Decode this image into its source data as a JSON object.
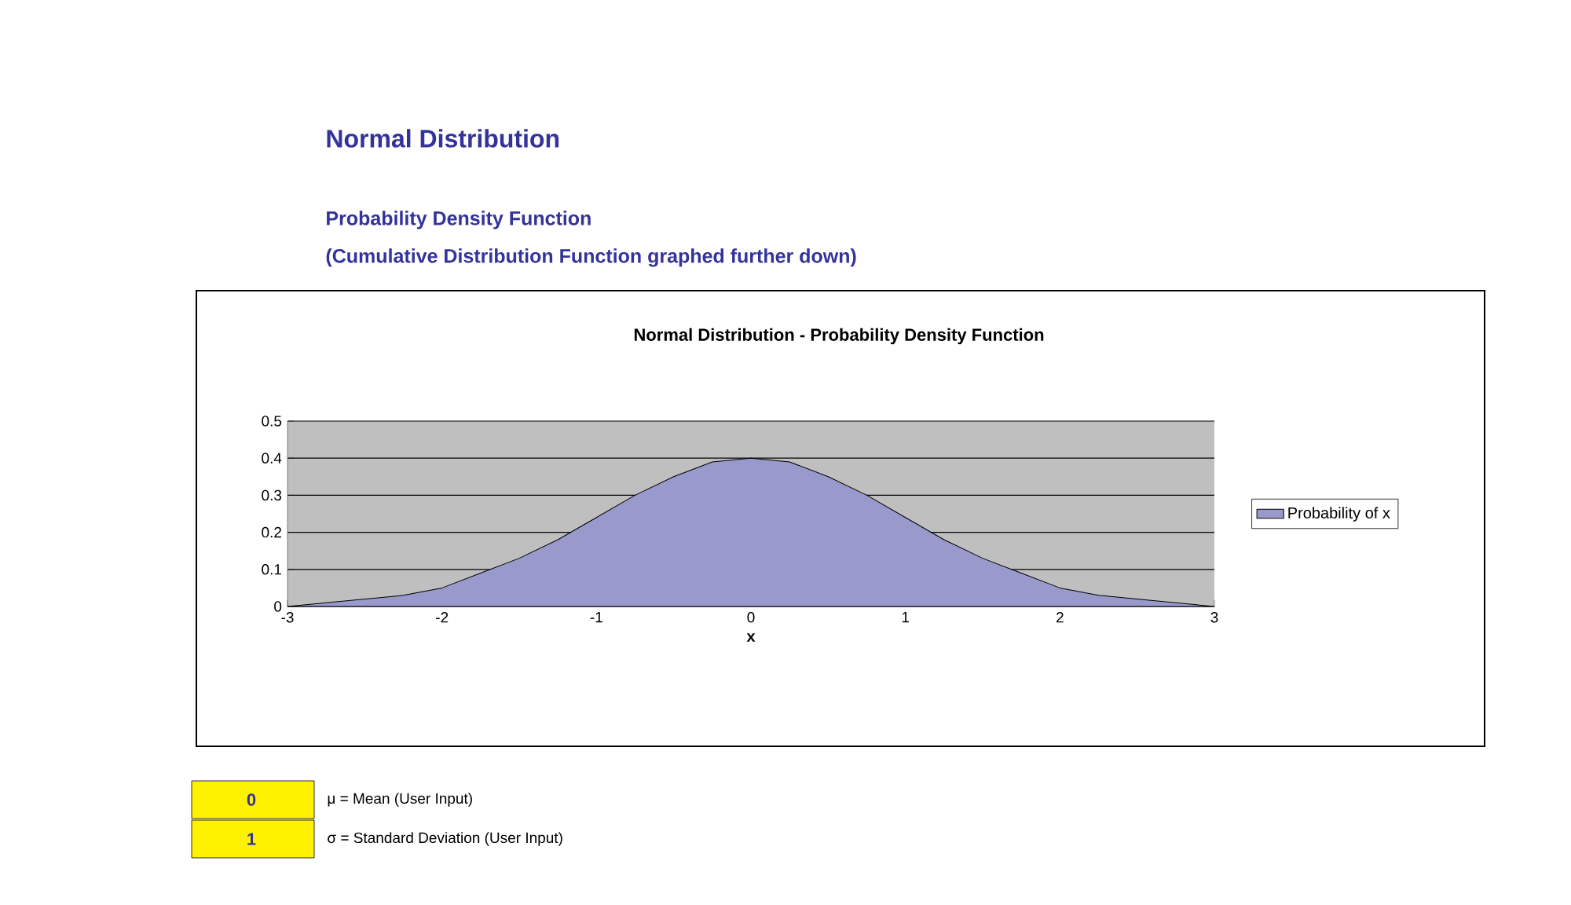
{
  "chart_data": {
    "type": "area",
    "title": "Normal Distribution - Probability Density Function",
    "annotations": [
      "Normal Distribution",
      "Probability Density Function",
      "(Cumulative Distribution Function graphed further down)",
      "0",
      "μ = Mean (User Input)",
      "1",
      "σ = Standard Deviation (User Input)"
    ],
    "xlabel": "x",
    "x": [
      -3,
      -2.75,
      -2.5,
      -2.25,
      -2,
      -1.75,
      -1.5,
      -1.25,
      -1,
      -0.75,
      -0.5,
      -0.25,
      0,
      0.25,
      0.5,
      0.75,
      1,
      1.25,
      1.5,
      1.75,
      2,
      2.25,
      2.5,
      2.75,
      3
    ],
    "series": [
      {
        "name": "Probability of x",
        "color": "#9999cc",
        "values": [
          0.0,
          0.01,
          0.02,
          0.03,
          0.05,
          0.09,
          0.13,
          0.18,
          0.24,
          0.3,
          0.35,
          0.39,
          0.4,
          0.39,
          0.35,
          0.3,
          0.24,
          0.18,
          0.13,
          0.09,
          0.05,
          0.03,
          0.02,
          0.01,
          0.0
        ]
      }
    ],
    "xlim": [
      -3,
      3
    ],
    "ylim": [
      0,
      0.5
    ],
    "xticks": [
      -3,
      -2,
      -1,
      0,
      1,
      2,
      3
    ],
    "yticks": [
      0,
      0.1,
      0.2,
      0.3,
      0.4,
      0.5
    ],
    "grid": "y",
    "legend": "right"
  }
}
